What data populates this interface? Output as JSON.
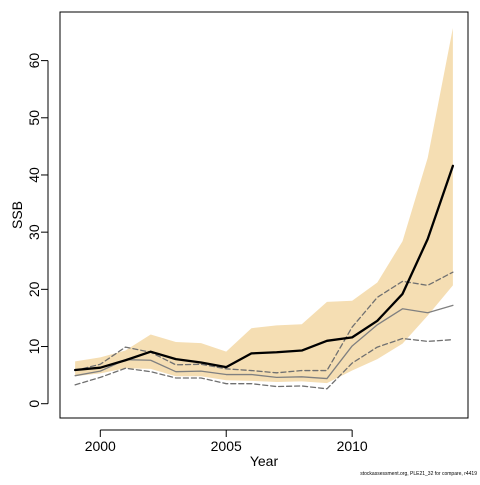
{
  "chart_data": {
    "type": "line",
    "xlabel": "Year",
    "ylabel": "SSB",
    "xlim": [
      1998.4,
      2014.6
    ],
    "ylim": [
      -2.5,
      68.5
    ],
    "x_ticks": [
      2000,
      2005,
      2010
    ],
    "y_ticks": [
      0,
      10,
      20,
      30,
      40,
      50,
      60
    ],
    "x": [
      1999,
      2000,
      2001,
      2002,
      2003,
      2004,
      2005,
      2006,
      2007,
      2008,
      2009,
      2010,
      2011,
      2012,
      2013,
      2014
    ],
    "band": {
      "color": "#f5deb3",
      "lower": [
        4.8,
        5.3,
        6.2,
        6.1,
        4.8,
        4.8,
        4.1,
        4.0,
        3.8,
        3.9,
        3.6,
        5.8,
        7.8,
        10.5,
        15.4,
        20.7
      ],
      "upper": [
        7.4,
        8.1,
        9.3,
        12.1,
        10.8,
        10.6,
        9.1,
        13.2,
        13.7,
        13.9,
        17.8,
        18.0,
        21.2,
        28.4,
        43.0,
        65.7
      ]
    },
    "series": [
      {
        "role": "estimate",
        "color": "#000000",
        "values": [
          5.9,
          6.3,
          7.6,
          9.1,
          7.8,
          7.2,
          6.4,
          8.8,
          9.0,
          9.3,
          11.0,
          11.6,
          14.5,
          19.2,
          28.8,
          41.6
        ]
      },
      {
        "role": "comparison",
        "color": "#808080",
        "values": [
          4.9,
          5.7,
          7.7,
          7.6,
          5.6,
          5.7,
          5.1,
          5.1,
          4.6,
          4.7,
          4.4,
          10.1,
          13.8,
          16.6,
          15.9,
          17.2
        ]
      },
      {
        "role": "comparison-upper",
        "color": "#707070",
        "values": [
          5.8,
          6.9,
          9.9,
          9.0,
          6.8,
          6.9,
          6.1,
          5.8,
          5.4,
          5.8,
          5.8,
          13.4,
          18.6,
          21.4,
          20.7,
          23.0
        ]
      },
      {
        "role": "comparison-lower",
        "color": "#707070",
        "values": [
          3.3,
          4.6,
          6.2,
          5.6,
          4.5,
          4.5,
          3.5,
          3.5,
          3.0,
          3.1,
          2.6,
          7.1,
          9.9,
          11.4,
          10.9,
          11.2
        ]
      }
    ]
  },
  "credit": "stockassessment.org,  PLE21_32  for  compare,  r4419"
}
